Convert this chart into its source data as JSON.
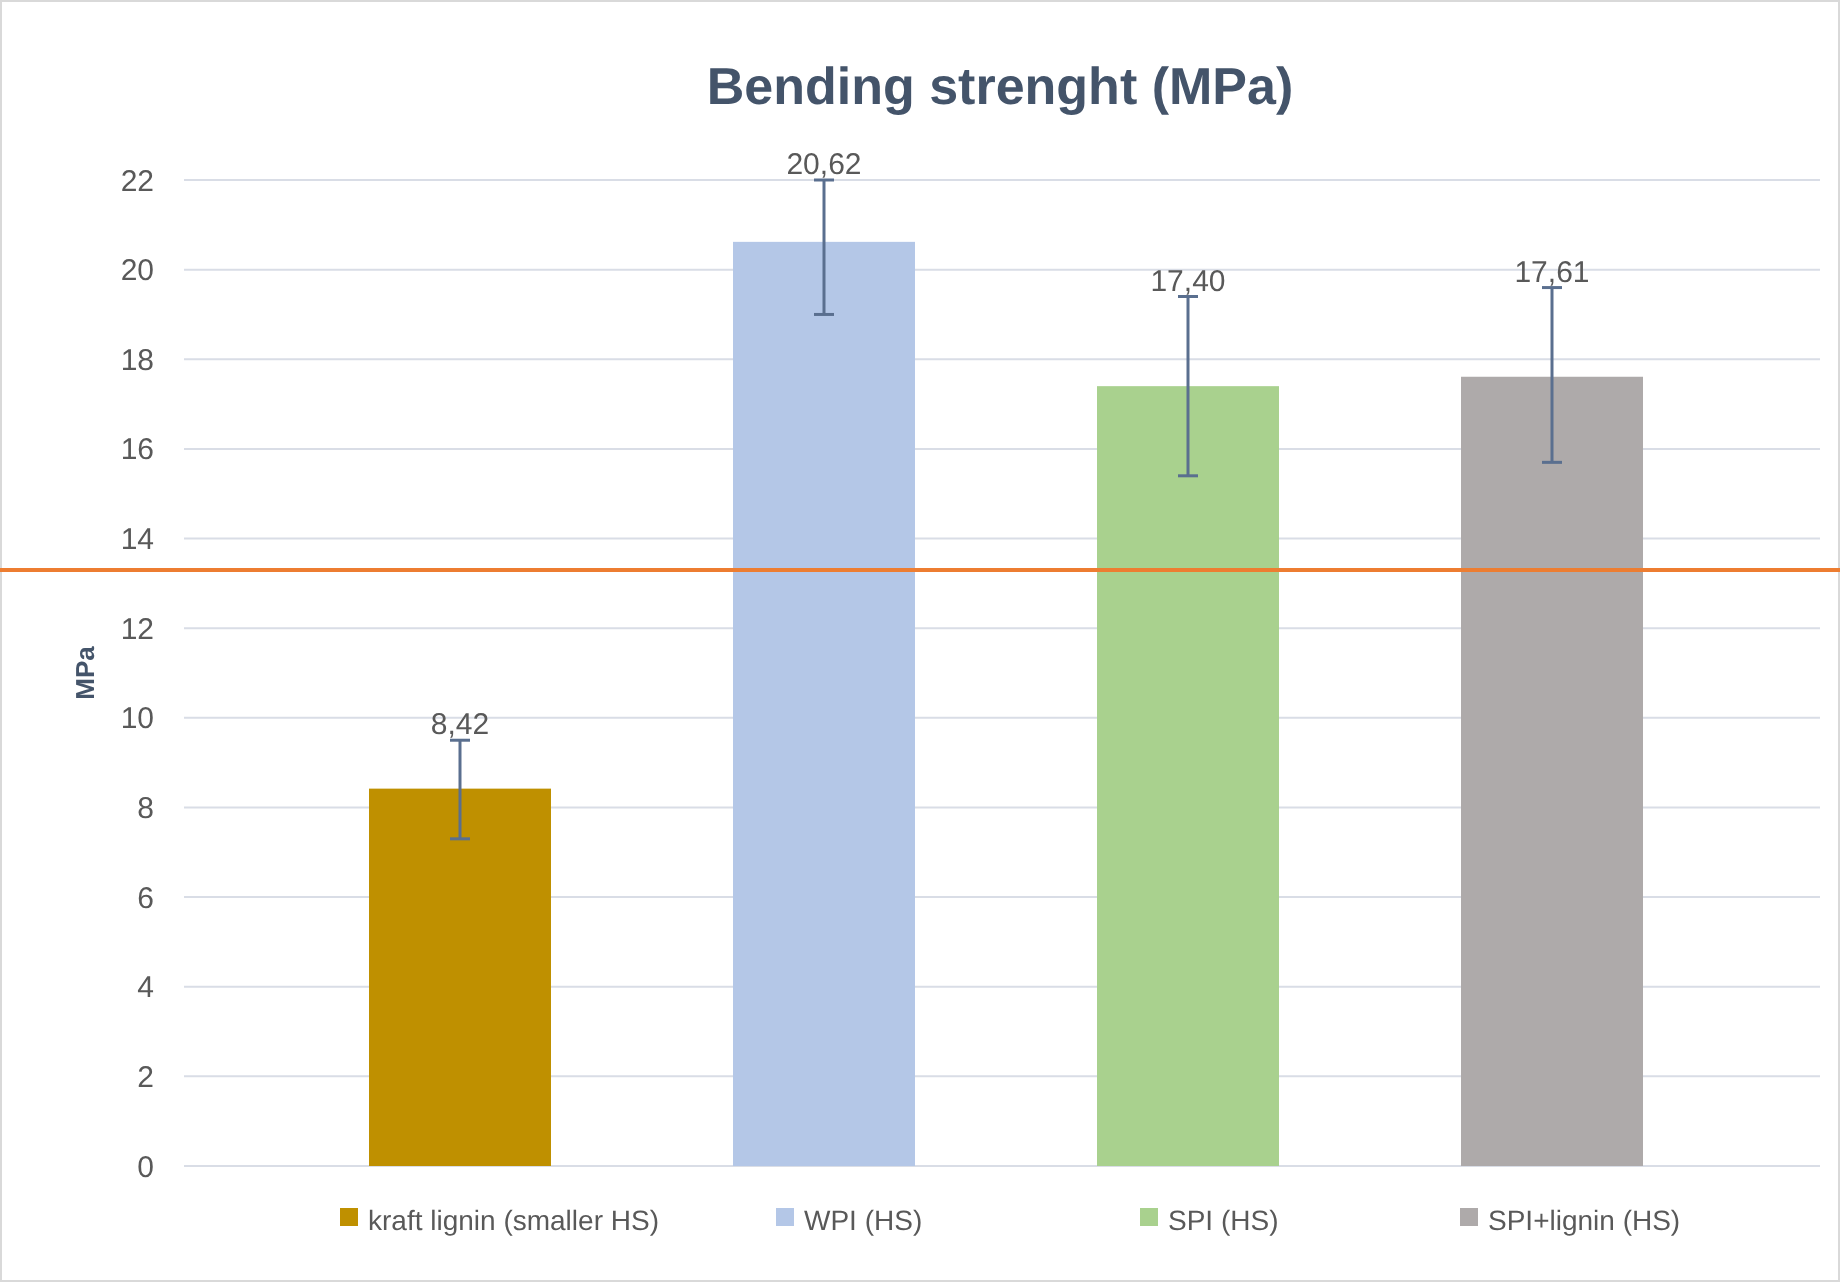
{
  "chart_data": {
    "type": "bar",
    "title": "Bending strenght (MPa)",
    "ylabel": "MPa",
    "categories": [
      null,
      null,
      null,
      null
    ],
    "series": [
      {
        "name": "kraft lignin (smaller HS)",
        "color": "#bf9000",
        "values": [
          8.42,
          null,
          null,
          null
        ],
        "errors": [
          [
            7.3,
            9.5
          ],
          null,
          null,
          null
        ],
        "value_labels": [
          "8,42",
          null,
          null,
          null
        ]
      },
      {
        "name": "WPI (HS)",
        "color": "#b4c7e7",
        "values": [
          null,
          20.62,
          null,
          null
        ],
        "errors": [
          null,
          [
            19.0,
            22.0
          ],
          null,
          null
        ],
        "value_labels": [
          null,
          "20,62",
          null,
          null
        ]
      },
      {
        "name": "SPI (HS)",
        "color": "#a9d18e",
        "values": [
          null,
          null,
          17.4,
          null
        ],
        "errors": [
          null,
          null,
          [
            15.4,
            19.4
          ],
          null
        ],
        "value_labels": [
          null,
          null,
          "17,40",
          null
        ]
      },
      {
        "name": "SPI+lignin (HS)",
        "color": "#aeaaaa",
        "values": [
          null,
          null,
          null,
          17.61
        ],
        "errors": [
          null,
          null,
          null,
          [
            15.7,
            19.6
          ]
        ],
        "value_labels": [
          null,
          null,
          null,
          "17,61"
        ]
      }
    ],
    "ylim": [
      0,
      22
    ],
    "yticks": [
      0,
      2,
      4,
      6,
      8,
      10,
      12,
      14,
      16,
      18,
      20,
      22
    ],
    "grid": "y",
    "legend": "bottom",
    "ref_lines": [
      {
        "axis": "y",
        "value": 13.3,
        "color": "#ed7d31"
      }
    ]
  }
}
